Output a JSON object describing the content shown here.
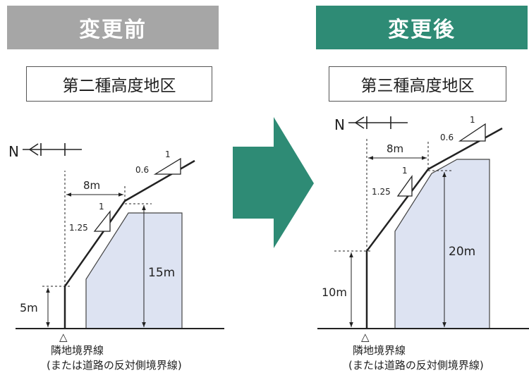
{
  "before": {
    "header": "変更前",
    "zone": "第二種高度地区",
    "north": "N",
    "slope_run_label": "1",
    "slope_lower_rise": "1.25",
    "slope_upper_rise": "0.6",
    "offset_label": "8m",
    "base_height": "5m",
    "building_height": "15m",
    "boundary_marker": "△",
    "boundary_label": "隣地境界線",
    "boundary_note": "(または道路の反対側境界線)"
  },
  "after": {
    "header": "変更後",
    "zone": "第三種高度地区",
    "north": "N",
    "slope_run_label": "1",
    "slope_lower_rise": "1.25",
    "slope_upper_rise": "0.6",
    "offset_label": "8m",
    "base_height": "10m",
    "building_height": "20m",
    "boundary_marker": "△",
    "boundary_label": "隣地境界線",
    "boundary_note": "(または道路の反対側境界線)"
  },
  "colors": {
    "before_header": "#a6a6a6",
    "after_header": "#2e8b75",
    "arrow": "#2e8b75",
    "building": "#dde3f2"
  }
}
